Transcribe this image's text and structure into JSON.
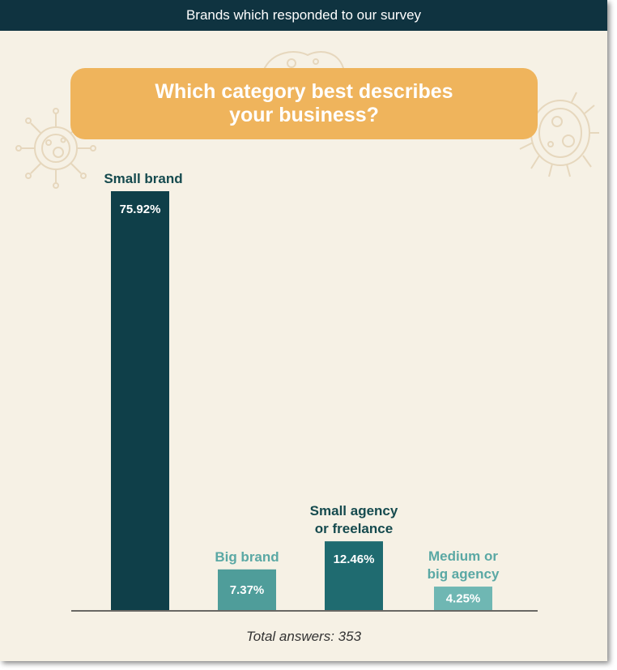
{
  "header": {
    "title": "Brands which responded to our survey"
  },
  "question": {
    "text": "Which category best describes\nyour business?"
  },
  "footer": {
    "total_label": "Total answers: 353"
  },
  "colors": {
    "dark": "#0f3f49",
    "mid": "#1f6b70",
    "teal": "#4f9d9a",
    "light": "#6fb7b3",
    "label_dark": "#154a4e",
    "label_light": "#5aa8a4",
    "question_bg": "#efb45c"
  },
  "chart_data": {
    "type": "bar",
    "title": "Which category best describes your business?",
    "categories": [
      "Small brand",
      "Big brand",
      "Small agency or freelance",
      "Medium or big agency"
    ],
    "category_lines": [
      [
        "Small brand"
      ],
      [
        "Big brand"
      ],
      [
        "Small agency",
        "or freelance"
      ],
      [
        "Medium or",
        "big agency"
      ]
    ],
    "values": [
      75.92,
      7.37,
      12.46,
      4.25
    ],
    "value_labels": [
      "75.92%",
      "7.37%",
      "12.46%",
      "4.25%"
    ],
    "xlabel": "",
    "ylabel": "",
    "ylim": [
      0,
      75.92
    ],
    "grid": false,
    "legend": "none",
    "total_answers": 353
  }
}
